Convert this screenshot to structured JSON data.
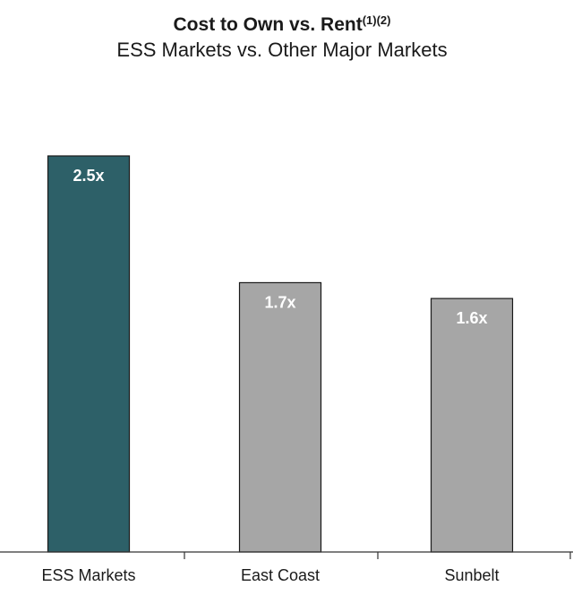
{
  "chart_data": {
    "type": "bar",
    "title": "Cost to Own vs. Rent",
    "title_superscript": "(1)(2)",
    "subtitle": "ESS Markets vs. Other Major Markets",
    "categories": [
      "ESS Markets",
      "East Coast",
      "Sunbelt"
    ],
    "values": [
      2.5,
      1.7,
      1.6
    ],
    "value_labels": [
      "2.5x",
      "1.7x",
      "1.6x"
    ],
    "bar_colors": [
      "#2d6068",
      "#a6a6a6",
      "#a6a6a6"
    ],
    "label_color": "#ffffff",
    "ylim": [
      0,
      2.8
    ],
    "grid": false,
    "xlabel": "",
    "ylabel": ""
  }
}
